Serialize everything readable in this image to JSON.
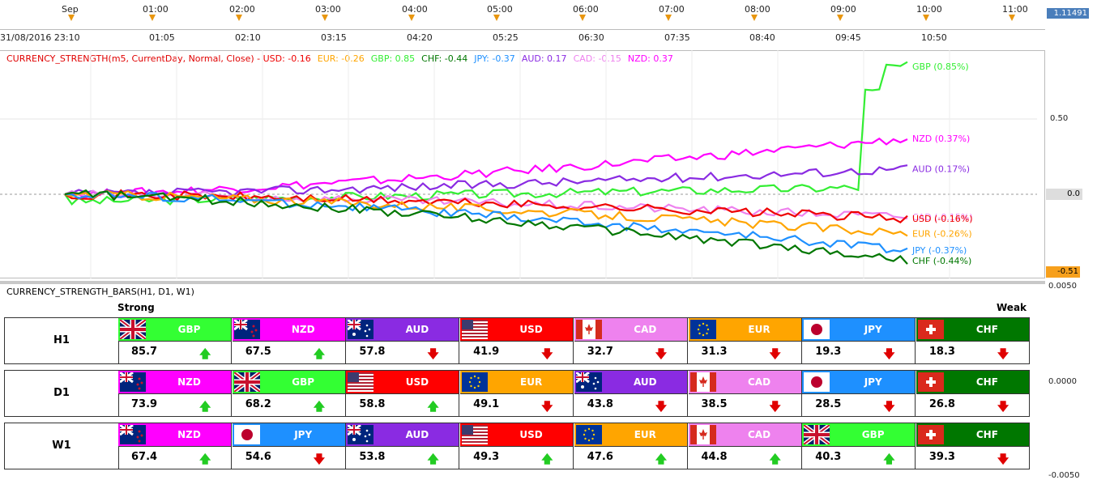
{
  "top_axis": {
    "top_labels": [
      "Sep",
      "01:00",
      "02:00",
      "03:00",
      "04:00",
      "05:00",
      "06:00",
      "07:00",
      "08:00",
      "09:00",
      "10:00",
      "11:00"
    ],
    "bottom_labels": [
      "31/08/2016 23:10",
      "01:05",
      "02:10",
      "03:15",
      "04:20",
      "05:25",
      "06:30",
      "07:35",
      "08:40",
      "09:45",
      "10:50"
    ],
    "price": "1.11491"
  },
  "indicator": {
    "prefix": "CURRENCY_STRENGTH(m5, CurrentDay, Normal, Close) - ",
    "items": [
      {
        "text": "USD: -0.16",
        "color": "#ee0000"
      },
      {
        "text": "EUR: -0.26",
        "color": "#ffa500"
      },
      {
        "text": "GBP: 0.85",
        "color": "#33ee33"
      },
      {
        "text": "CHF: -0.44",
        "color": "#007700"
      },
      {
        "text": "JPY: -0.37",
        "color": "#1e90ff"
      },
      {
        "text": "AUD: 0.17",
        "color": "#8a2be2"
      },
      {
        "text": "CAD: -0.15",
        "color": "#ee82ee"
      },
      {
        "text": "NZD: 0.37",
        "color": "#ff00ff"
      }
    ],
    "right_scale": [
      "0.50",
      "0.0"
    ],
    "current_value": "-0.51",
    "line_labels": [
      {
        "text": "GBP (0.85%)",
        "color": "#33ee33",
        "value": 0.85
      },
      {
        "text": "NZD (0.37%)",
        "color": "#ff00ff",
        "value": 0.37
      },
      {
        "text": "AUD (0.17%)",
        "color": "#8a2be2",
        "value": 0.17
      },
      {
        "text": "CAD (-0.15%)",
        "color": "#ee82ee",
        "value": -0.15
      },
      {
        "text": "USD (-0.16%)",
        "color": "#ee0000",
        "value": -0.16
      },
      {
        "text": "EUR (-0.26%)",
        "color": "#ffa500",
        "value": -0.26
      },
      {
        "text": "JPY (-0.37%)",
        "color": "#1e90ff",
        "value": -0.37
      },
      {
        "text": "CHF (-0.44%)",
        "color": "#007700",
        "value": -0.44
      }
    ]
  },
  "bars": {
    "title": "CURRENCY_STRENGTH_BARS(H1, D1, W1)",
    "strong": "Strong",
    "weak": "Weak",
    "scale": [
      "0.0050",
      "0.0000",
      "-0.0050"
    ],
    "colors": {
      "GBP": "#33ff33",
      "NZD": "#ff00ff",
      "AUD": "#8a2be2",
      "USD": "#ff0000",
      "CAD": "#ee82ee",
      "EUR": "#ffa500",
      "JPY": "#1e90ff",
      "CHF": "#007700"
    },
    "rows": [
      {
        "tf": "H1",
        "cells": [
          {
            "cur": "GBP",
            "score": "85.7",
            "dir": "up"
          },
          {
            "cur": "NZD",
            "score": "67.5",
            "dir": "up"
          },
          {
            "cur": "AUD",
            "score": "57.8",
            "dir": "down"
          },
          {
            "cur": "USD",
            "score": "41.9",
            "dir": "down"
          },
          {
            "cur": "CAD",
            "score": "32.7",
            "dir": "down"
          },
          {
            "cur": "EUR",
            "score": "31.3",
            "dir": "down"
          },
          {
            "cur": "JPY",
            "score": "19.3",
            "dir": "down"
          },
          {
            "cur": "CHF",
            "score": "18.3",
            "dir": "down"
          }
        ]
      },
      {
        "tf": "D1",
        "cells": [
          {
            "cur": "NZD",
            "score": "73.9",
            "dir": "up"
          },
          {
            "cur": "GBP",
            "score": "68.2",
            "dir": "up"
          },
          {
            "cur": "USD",
            "score": "58.8",
            "dir": "up"
          },
          {
            "cur": "EUR",
            "score": "49.1",
            "dir": "down"
          },
          {
            "cur": "AUD",
            "score": "43.8",
            "dir": "down"
          },
          {
            "cur": "CAD",
            "score": "38.5",
            "dir": "down"
          },
          {
            "cur": "JPY",
            "score": "28.5",
            "dir": "down"
          },
          {
            "cur": "CHF",
            "score": "26.8",
            "dir": "down"
          }
        ]
      },
      {
        "tf": "W1",
        "cells": [
          {
            "cur": "NZD",
            "score": "67.4",
            "dir": "up"
          },
          {
            "cur": "JPY",
            "score": "54.6",
            "dir": "down"
          },
          {
            "cur": "AUD",
            "score": "53.8",
            "dir": "up"
          },
          {
            "cur": "USD",
            "score": "49.3",
            "dir": "up"
          },
          {
            "cur": "EUR",
            "score": "47.6",
            "dir": "up"
          },
          {
            "cur": "CAD",
            "score": "44.8",
            "dir": "up"
          },
          {
            "cur": "GBP",
            "score": "40.3",
            "dir": "up"
          },
          {
            "cur": "CHF",
            "score": "39.3",
            "dir": "down"
          }
        ]
      }
    ]
  }
}
